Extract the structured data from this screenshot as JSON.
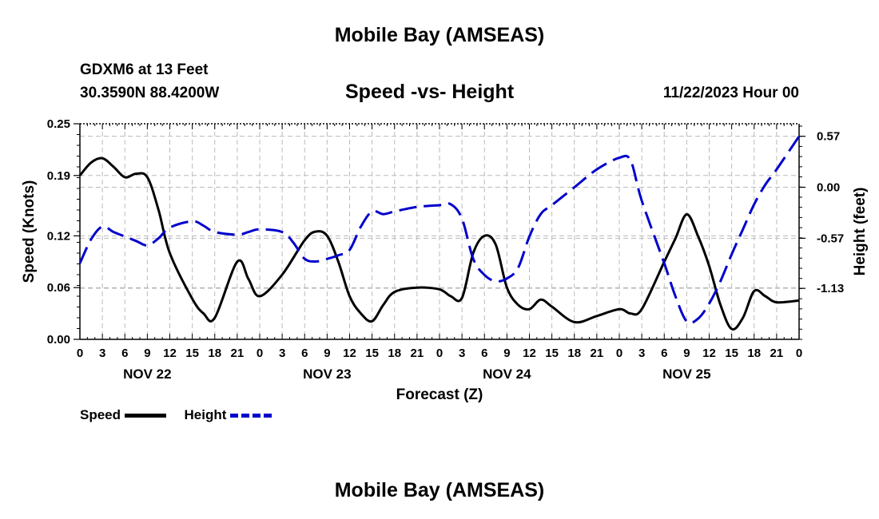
{
  "page": {
    "title_top": "Mobile Bay (AMSEAS)",
    "title_bottom": "Mobile Bay (AMSEAS)",
    "station": "GDXM6 at 13 Feet",
    "coords": "30.3590N  88.4200W",
    "subtitle": "Speed -vs- Height",
    "datetime": "11/22/2023 Hour 00"
  },
  "legend": [
    {
      "label": "Speed",
      "color": "#000000",
      "style": "solid"
    },
    {
      "label": "Height",
      "color": "#0000cc",
      "style": "dashed"
    }
  ],
  "chart_data": {
    "type": "line",
    "xlabel": "Forecast (Z)",
    "ylabel_left": "Speed (Knots)",
    "ylabel_right": "Height (feet)",
    "grid": true,
    "x_range_hours": [
      0,
      96
    ],
    "x_tick_labels": [
      "0",
      "3",
      "6",
      "9",
      "12",
      "15",
      "18",
      "21",
      "0",
      "3",
      "6",
      "9",
      "12",
      "15",
      "18",
      "21",
      "0",
      "3",
      "6",
      "9",
      "12",
      "15",
      "18",
      "21",
      "0",
      "3",
      "6",
      "9",
      "12",
      "15",
      "18",
      "21",
      "0"
    ],
    "date_labels": [
      {
        "label": "NOV 22",
        "hour": 9
      },
      {
        "label": "NOV 23",
        "hour": 33
      },
      {
        "label": "NOV 24",
        "hour": 57
      },
      {
        "label": "NOV 25",
        "hour": 81
      }
    ],
    "y_left": {
      "range": [
        0,
        0.25
      ],
      "ticks": [
        0.0,
        0.06,
        0.12,
        0.19,
        0.25
      ],
      "tick_labels": [
        "0.00",
        "0.06",
        "0.12",
        "0.19",
        "0.25"
      ]
    },
    "y_right": {
      "range": [
        -1.7,
        0.71
      ],
      "ticks": [
        -1.13,
        -0.57,
        0.0,
        0.57
      ],
      "tick_labels": [
        "-1.13",
        "-0.57",
        "0.00",
        "0.57"
      ]
    },
    "series": [
      {
        "name": "Speed",
        "axis": "left",
        "color": "#000000",
        "dash": "solid",
        "x": [
          0,
          1.5,
          3,
          4.5,
          6,
          7.5,
          9,
          10.5,
          12,
          15,
          16.5,
          18,
          21,
          22.5,
          24,
          27,
          30,
          31.5,
          33,
          34.5,
          36,
          37.5,
          39,
          40.5,
          42,
          45,
          48,
          49.5,
          51,
          52.5,
          54,
          55.5,
          57,
          58.5,
          60,
          61.5,
          63,
          66,
          69,
          72,
          73.5,
          75,
          78,
          79.5,
          81,
          82.5,
          84,
          85.5,
          87,
          88.5,
          90,
          91.5,
          93,
          96
        ],
        "values": [
          0.19,
          0.205,
          0.21,
          0.2,
          0.188,
          0.192,
          0.188,
          0.15,
          0.1,
          0.047,
          0.03,
          0.025,
          0.09,
          0.07,
          0.05,
          0.075,
          0.115,
          0.125,
          0.12,
          0.09,
          0.05,
          0.03,
          0.021,
          0.04,
          0.055,
          0.06,
          0.058,
          0.05,
          0.048,
          0.1,
          0.12,
          0.11,
          0.06,
          0.04,
          0.035,
          0.046,
          0.038,
          0.02,
          0.027,
          0.035,
          0.03,
          0.035,
          0.09,
          0.117,
          0.145,
          0.12,
          0.085,
          0.04,
          0.012,
          0.025,
          0.056,
          0.05,
          0.043,
          0.045
        ]
      },
      {
        "name": "Height",
        "axis": "right",
        "color": "#0000cc",
        "dash": "dashed",
        "x": [
          0,
          1.5,
          3,
          4.5,
          6,
          7.5,
          9,
          10.5,
          12,
          15,
          16.5,
          18,
          21,
          22.5,
          24,
          27,
          28.5,
          30,
          31.5,
          33,
          34.5,
          36,
          37.5,
          39,
          40.5,
          42,
          45,
          48,
          49.5,
          51,
          52.5,
          54,
          55.5,
          57,
          58.5,
          60,
          61.5,
          63,
          66,
          69,
          72,
          73.5,
          75,
          78,
          79.5,
          81,
          82.5,
          84,
          85.5,
          87,
          88.5,
          90,
          91.5,
          93,
          96
        ],
        "values": [
          -0.85,
          -0.58,
          -0.44,
          -0.5,
          -0.55,
          -0.6,
          -0.65,
          -0.57,
          -0.45,
          -0.38,
          -0.43,
          -0.5,
          -0.53,
          -0.5,
          -0.47,
          -0.5,
          -0.62,
          -0.8,
          -0.83,
          -0.8,
          -0.76,
          -0.7,
          -0.44,
          -0.27,
          -0.3,
          -0.27,
          -0.22,
          -0.2,
          -0.19,
          -0.35,
          -0.8,
          -0.98,
          -1.05,
          -1.02,
          -0.9,
          -0.55,
          -0.3,
          -0.2,
          0.0,
          0.2,
          0.33,
          0.3,
          -0.15,
          -0.85,
          -1.22,
          -1.5,
          -1.47,
          -1.3,
          -1.05,
          -0.75,
          -0.47,
          -0.19,
          0.03,
          0.2,
          0.57
        ]
      }
    ]
  }
}
